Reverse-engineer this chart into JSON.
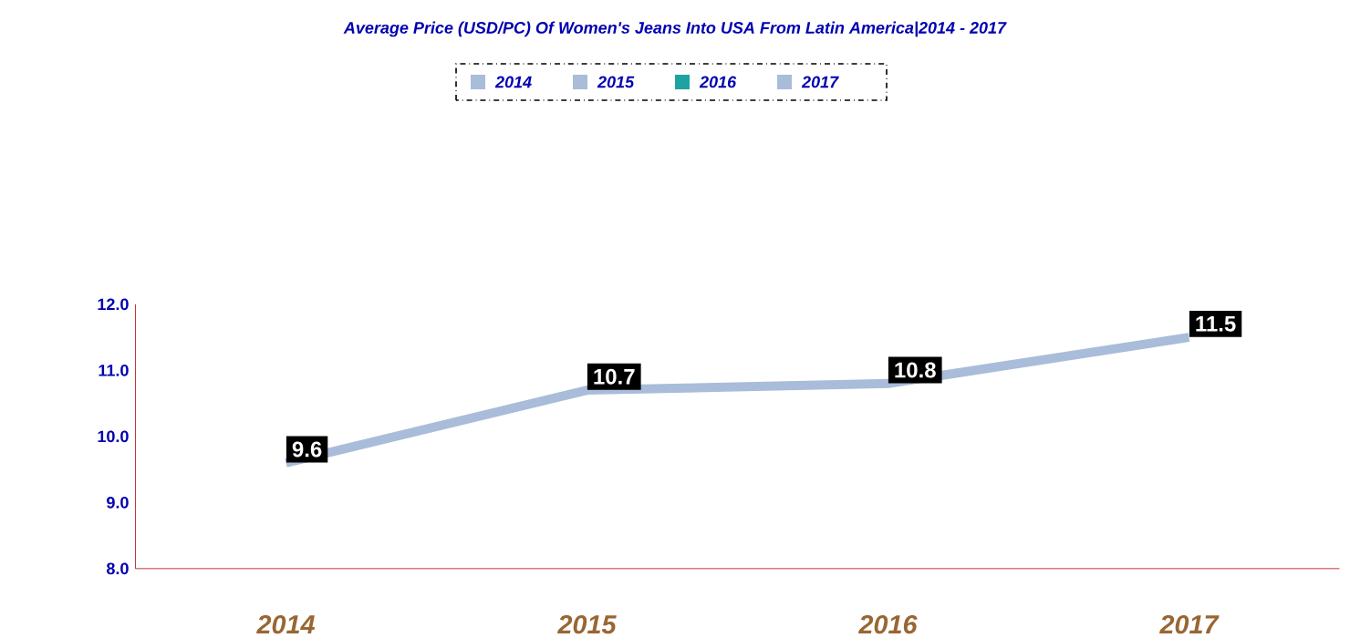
{
  "chart_data": {
    "type": "line",
    "title": "Average Price (USD/PC) Of Women's Jeans Into USA From Latin America|2014 - 2017",
    "categories": [
      "2014",
      "2015",
      "2016",
      "2017"
    ],
    "values": [
      9.6,
      10.7,
      10.8,
      11.5
    ],
    "value_labels": [
      "9.6",
      "10.7",
      "10.8",
      "11.5"
    ],
    "color": "#a9bcd9",
    "colors": [
      "#a9bcd9",
      "#a9bcd9",
      "#1fa3a0",
      "#a9bcd9"
    ],
    "ylim": [
      8,
      12
    ],
    "yticks": [
      {
        "value": 8,
        "label": "8.0"
      },
      {
        "value": 9,
        "label": "9.0"
      },
      {
        "value": 10,
        "label": "10.0"
      },
      {
        "value": 11,
        "label": "11.0"
      },
      {
        "value": 12,
        "label": "12.0"
      }
    ],
    "grid": false
  }
}
